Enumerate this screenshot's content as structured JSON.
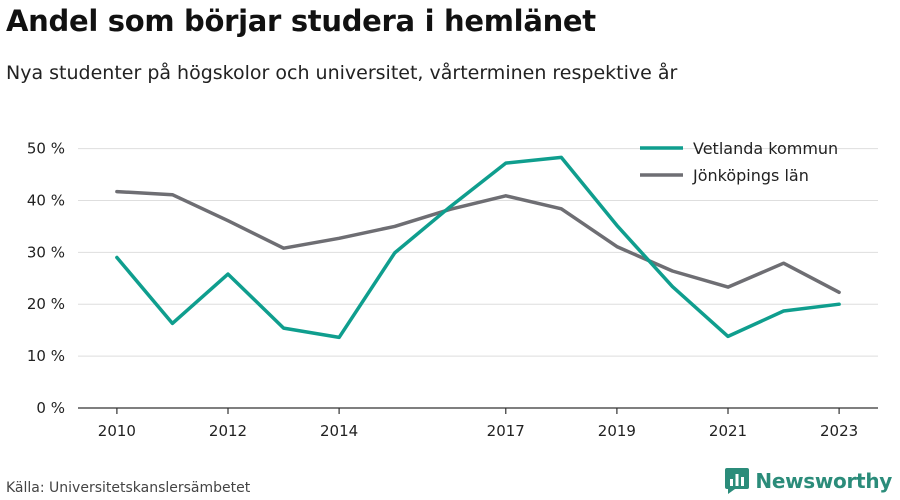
{
  "title": "Andel som börjar studera i hemlänet",
  "subtitle": "Nya studenter på högskolor och universitet, vårterminen respektive år",
  "source": "Källa: Universitetskanslersämbetet",
  "brand": "Newsworthy",
  "colors": {
    "vetlanda": "#0f9e8e",
    "jonkoping": "#6e6e73",
    "brand": "#2b8c7a"
  },
  "chart_data": {
    "type": "line",
    "x": [
      2010,
      2011,
      2012,
      2013,
      2014,
      2015,
      2016,
      2017,
      2018,
      2019,
      2020,
      2021,
      2022,
      2023
    ],
    "x_ticks": [
      2010,
      2012,
      2014,
      2017,
      2019,
      2021,
      2023
    ],
    "y_ticks": [
      0,
      10,
      20,
      30,
      40,
      50
    ],
    "y_tick_labels": [
      "0 %",
      "10 %",
      "20 %",
      "30 %",
      "40 %",
      "50 %"
    ],
    "ylim": [
      0,
      53
    ],
    "xlim": [
      2009.3,
      2023.7
    ],
    "grid": true,
    "legend_position": "top-right",
    "series": [
      {
        "name": "Vetlanda kommun",
        "values": [
          29.0,
          16.3,
          25.8,
          15.4,
          13.6,
          29.9,
          38.8,
          47.2,
          48.3,
          35.2,
          23.4,
          13.8,
          18.7,
          20.0
        ]
      },
      {
        "name": "Jönköpings län",
        "values": [
          41.7,
          41.1,
          36.1,
          30.8,
          32.7,
          35.0,
          38.3,
          40.9,
          38.4,
          31.1,
          26.4,
          23.3,
          27.9,
          22.3
        ]
      }
    ]
  }
}
